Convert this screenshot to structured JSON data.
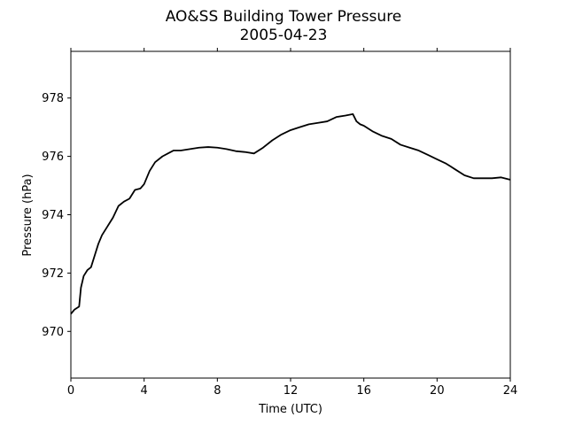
{
  "chart_data": {
    "type": "line",
    "title": "AO&SS Building Tower Pressure",
    "subtitle": "2005-04-23",
    "xlabel": "Time (UTC)",
    "ylabel": "Pressure (hPa)",
    "xlim": [
      0,
      24
    ],
    "ylim": [
      968.4,
      979.6
    ],
    "xticks": [
      0,
      4,
      8,
      12,
      16,
      20,
      24
    ],
    "yticks": [
      970,
      972,
      974,
      976,
      978
    ],
    "grid": false,
    "legend": "none",
    "colors": {
      "line": "#000000",
      "axes": "#000000",
      "background": "#ffffff"
    },
    "series": [
      {
        "x": [
          0.0,
          0.2,
          0.45,
          0.55,
          0.7,
          0.9,
          1.1,
          1.3,
          1.5,
          1.7,
          2.0,
          2.3,
          2.6,
          2.9,
          3.2,
          3.5,
          3.8,
          4.0,
          4.3,
          4.6,
          5.0,
          5.3,
          5.6,
          6.0,
          6.5,
          7.0,
          7.5,
          8.0,
          8.5,
          9.0,
          9.5,
          10.0,
          10.5,
          11.0,
          11.5,
          12.0,
          12.5,
          13.0,
          13.5,
          14.0,
          14.5,
          15.0,
          15.4,
          15.6,
          15.8,
          16.0,
          16.5,
          17.0,
          17.5,
          18.0,
          18.5,
          19.0,
          19.5,
          20.0,
          20.5,
          21.0,
          21.5,
          22.0,
          22.5,
          23.0,
          23.5,
          24.0
        ],
        "y": [
          970.6,
          970.75,
          970.85,
          971.5,
          971.9,
          972.1,
          972.2,
          972.6,
          973.0,
          973.3,
          973.6,
          973.9,
          974.3,
          974.45,
          974.55,
          974.85,
          974.9,
          975.05,
          975.5,
          975.8,
          976.0,
          976.1,
          976.2,
          976.2,
          976.25,
          976.3,
          976.32,
          976.3,
          976.25,
          976.18,
          976.15,
          976.1,
          976.3,
          976.55,
          976.75,
          976.9,
          977.0,
          977.1,
          977.15,
          977.2,
          977.35,
          977.4,
          977.45,
          977.2,
          977.1,
          977.05,
          976.85,
          976.7,
          976.6,
          976.4,
          976.3,
          976.2,
          976.05,
          975.9,
          975.75,
          975.55,
          975.35,
          975.25,
          975.25,
          975.25,
          975.28,
          975.2
        ]
      }
    ]
  }
}
